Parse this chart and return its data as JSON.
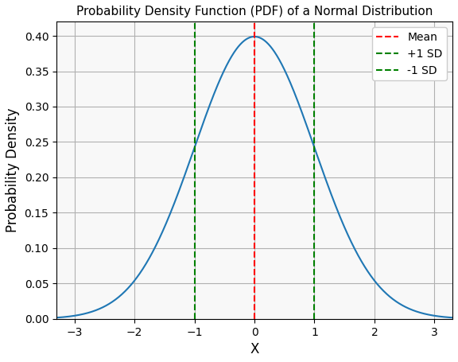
{
  "title": "Probability Density Function (PDF) of a Normal Distribution",
  "xlabel": "X",
  "ylabel": "Probability Density",
  "mu": 0,
  "sigma": 1,
  "x_min": -3.3,
  "x_max": 3.3,
  "x_ticks": [
    -3,
    -2,
    -1,
    0,
    1,
    2,
    3
  ],
  "ylim": [
    0.0,
    0.42
  ],
  "xlim": [
    -3.3,
    3.3
  ],
  "curve_color": "#1f77b4",
  "mean_line_color": "red",
  "sd_line_color": "green",
  "mean_line_label": "Mean",
  "plus_sd_label": "+1 SD",
  "minus_sd_label": "-1 SD",
  "linestyle_mean": "--",
  "linestyle_sd": "--",
  "grid": true,
  "grid_color": "#b0b0b0",
  "figsize": [
    5.76,
    4.55
  ],
  "dpi": 100,
  "title_fontsize": 11,
  "label_fontsize": 12,
  "legend_fontsize": 10
}
